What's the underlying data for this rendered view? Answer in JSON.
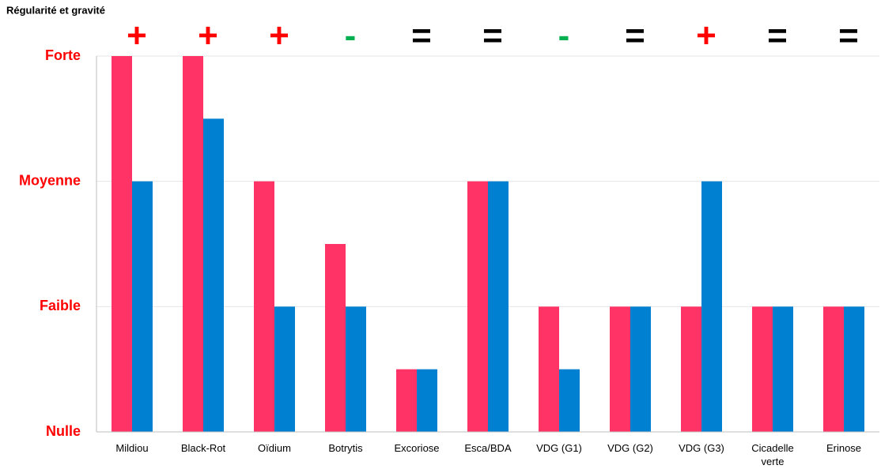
{
  "chart_data": {
    "type": "bar",
    "title": "Régularité et gravité",
    "categories": [
      "Mildiou",
      "Black-Rot",
      "Oïdium",
      "Botrytis",
      "Excoriose",
      "Esca/BDA",
      "VDG (G1)",
      "VDG (G2)",
      "VDG (G3)",
      "Cicadelle verte",
      "Erinose"
    ],
    "series": [
      {
        "color": "#ff3366",
        "values": [
          3,
          3,
          2,
          1.5,
          0.5,
          2,
          1,
          1,
          1,
          1,
          1
        ]
      },
      {
        "color": "#0080d0",
        "values": [
          2,
          2.5,
          1,
          1,
          0.5,
          2,
          0.5,
          1,
          2,
          1,
          1
        ]
      }
    ],
    "annotations": [
      {
        "text": "+",
        "color": "#ff0000"
      },
      {
        "text": "+",
        "color": "#ff0000"
      },
      {
        "text": "+",
        "color": "#ff0000"
      },
      {
        "text": "-",
        "color": "#00b050"
      },
      {
        "text": "=",
        "color": "#000000"
      },
      {
        "text": "=",
        "color": "#000000"
      },
      {
        "text": "-",
        "color": "#00b050"
      },
      {
        "text": "=",
        "color": "#000000"
      },
      {
        "text": "+",
        "color": "#ff0000"
      },
      {
        "text": "=",
        "color": "#000000"
      },
      {
        "text": "=",
        "color": "#000000"
      }
    ],
    "ylim": [
      0,
      3
    ],
    "yticks": [
      {
        "value": 0,
        "label": "Nulle"
      },
      {
        "value": 1,
        "label": "Faible"
      },
      {
        "value": 2,
        "label": "Moyenne"
      },
      {
        "value": 3,
        "label": "Forte"
      }
    ],
    "grid": true
  }
}
